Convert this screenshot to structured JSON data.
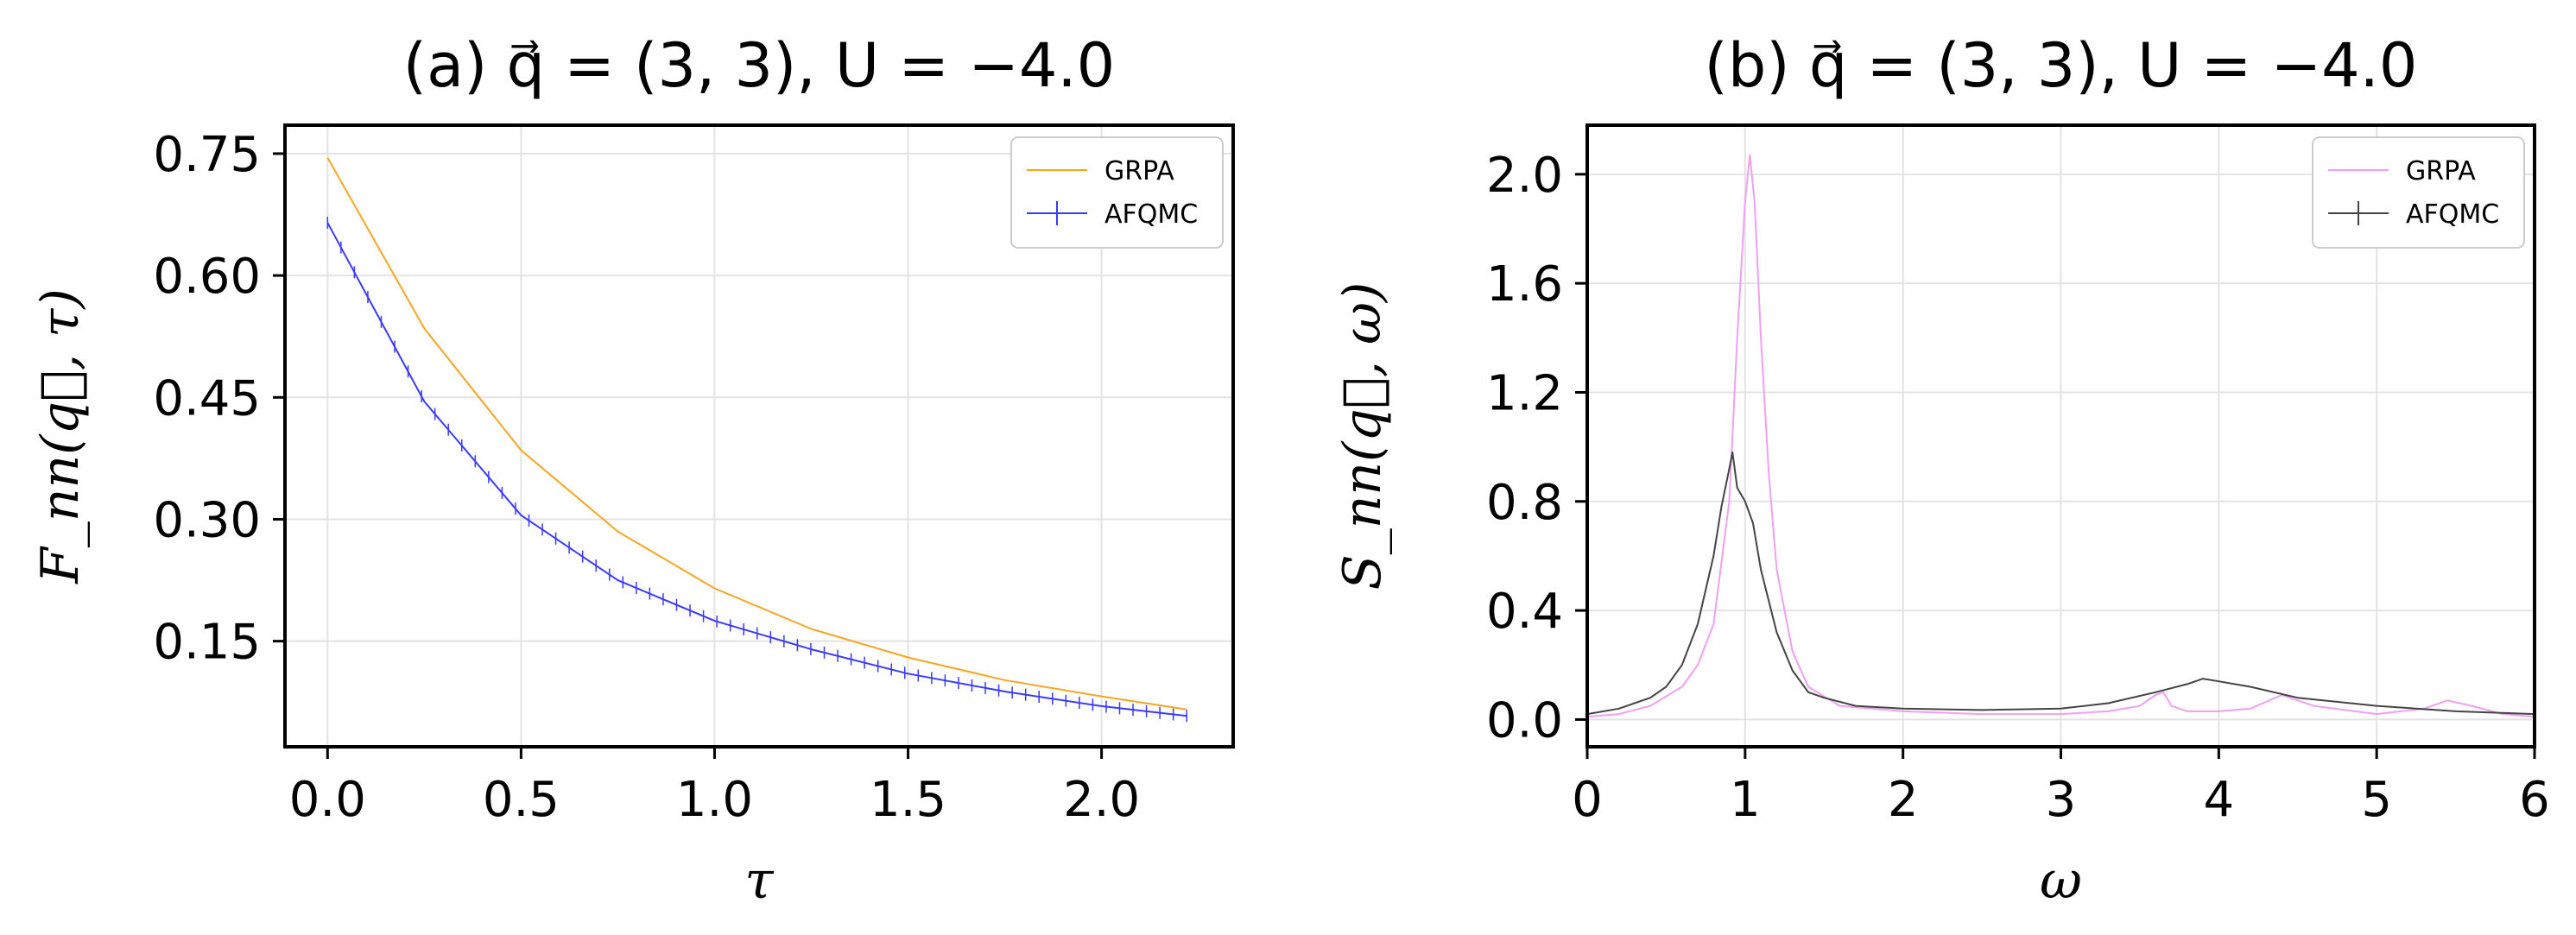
{
  "chart_data": [
    {
      "id": "a",
      "type": "line",
      "title": "(a)  q⃗ = (3, 3), U = −4.0",
      "xlabel": "τ",
      "ylabel": "F_nn(q⃗, τ)",
      "xlim": [
        -0.11,
        2.34
      ],
      "ylim": [
        0.02,
        0.785
      ],
      "xticks": [
        0.0,
        0.5,
        1.0,
        1.5,
        2.0
      ],
      "xtick_labels": [
        "0.0",
        "0.5",
        "1.0",
        "1.5",
        "2.0"
      ],
      "yticks": [
        0.15,
        0.3,
        0.45,
        0.6,
        0.75
      ],
      "ytick_labels": [
        "0.15",
        "0.30",
        "0.45",
        "0.60",
        "0.75"
      ],
      "grid": true,
      "legend_position": "top-right",
      "series": [
        {
          "name": "GRPA",
          "color": "#f5a623",
          "x": [
            0.0,
            0.25,
            0.5,
            0.75,
            1.0,
            1.25,
            1.5,
            1.75,
            2.0,
            2.22
          ],
          "y": [
            0.745,
            0.535,
            0.385,
            0.285,
            0.215,
            0.165,
            0.13,
            0.102,
            0.082,
            0.066
          ]
        },
        {
          "name": "AFQMC",
          "color": "#3b3bff",
          "x": [
            0.0,
            0.25,
            0.5,
            0.75,
            1.0,
            1.25,
            1.5,
            1.75,
            2.0,
            2.22
          ],
          "y": [
            0.665,
            0.445,
            0.305,
            0.225,
            0.175,
            0.14,
            0.11,
            0.088,
            0.07,
            0.058
          ]
        }
      ]
    },
    {
      "id": "b",
      "type": "line",
      "title": "(b)  q⃗ = (3, 3), U = −4.0",
      "xlabel": "ω",
      "ylabel": "S_nn(q⃗, ω)",
      "xlim": [
        0,
        6
      ],
      "ylim": [
        -0.1,
        2.18
      ],
      "xticks": [
        0,
        1,
        2,
        3,
        4,
        5,
        6
      ],
      "xtick_labels": [
        "0",
        "1",
        "2",
        "3",
        "4",
        "5",
        "6"
      ],
      "yticks": [
        0.0,
        0.4,
        0.8,
        1.2,
        1.6,
        2.0
      ],
      "ytick_labels": [
        "0.0",
        "0.4",
        "0.8",
        "1.2",
        "1.6",
        "2.0"
      ],
      "grid": true,
      "legend_position": "top-right",
      "series": [
        {
          "name": "GRPA",
          "color": "#f0a0f0",
          "x": [
            0,
            0.2,
            0.4,
            0.6,
            0.7,
            0.8,
            0.9,
            0.95,
            1.0,
            1.03,
            1.06,
            1.1,
            1.15,
            1.2,
            1.3,
            1.4,
            1.6,
            2.0,
            2.5,
            3.0,
            3.3,
            3.5,
            3.6,
            3.65,
            3.7,
            3.8,
            4.0,
            4.2,
            4.4,
            4.6,
            5.0,
            5.3,
            5.45,
            5.6,
            5.8,
            6.0
          ],
          "y": [
            0.01,
            0.02,
            0.05,
            0.12,
            0.2,
            0.35,
            0.8,
            1.4,
            1.9,
            2.07,
            1.9,
            1.4,
            0.9,
            0.55,
            0.25,
            0.12,
            0.05,
            0.03,
            0.02,
            0.02,
            0.03,
            0.05,
            0.09,
            0.1,
            0.05,
            0.03,
            0.03,
            0.04,
            0.09,
            0.05,
            0.02,
            0.04,
            0.07,
            0.05,
            0.02,
            0.01
          ]
        },
        {
          "name": "AFQMC",
          "color": "#444444",
          "x": [
            0,
            0.2,
            0.4,
            0.5,
            0.6,
            0.7,
            0.8,
            0.85,
            0.9,
            0.92,
            0.95,
            1.0,
            1.05,
            1.1,
            1.2,
            1.3,
            1.4,
            1.5,
            1.7,
            2.0,
            2.5,
            3.0,
            3.3,
            3.6,
            3.8,
            3.9,
            4.0,
            4.2,
            4.5,
            5.0,
            5.5,
            6.0
          ],
          "y": [
            0.02,
            0.04,
            0.08,
            0.12,
            0.2,
            0.35,
            0.6,
            0.78,
            0.92,
            0.98,
            0.85,
            0.8,
            0.72,
            0.55,
            0.32,
            0.18,
            0.1,
            0.08,
            0.05,
            0.04,
            0.035,
            0.04,
            0.06,
            0.1,
            0.13,
            0.15,
            0.14,
            0.12,
            0.08,
            0.05,
            0.03,
            0.02
          ]
        }
      ]
    }
  ]
}
